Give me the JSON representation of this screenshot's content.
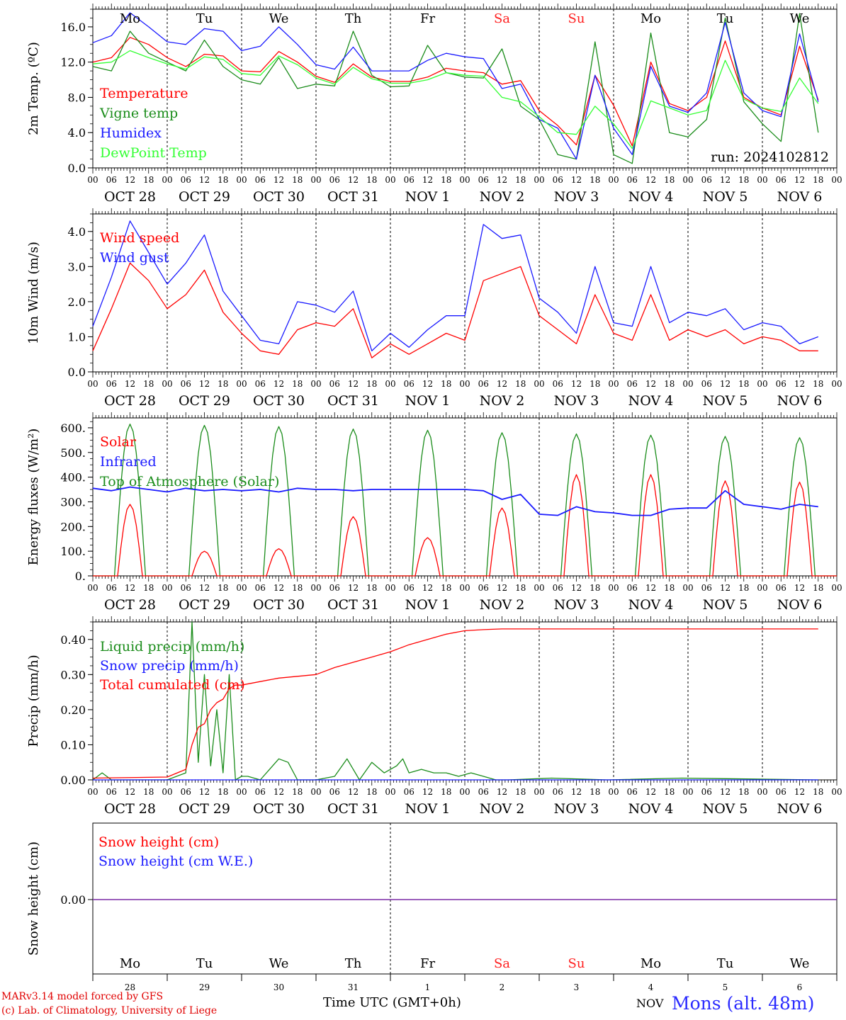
{
  "footer": {
    "credit_model": "MARv3.14 model forced by GFS",
    "credit_lab": "(c) Lab. of Climatology, University of Liege",
    "x_axis_title": "Time UTC (GMT+0h)",
    "month_label": "NOV",
    "station": "Mons (alt. 48m)"
  },
  "day_names": [
    "Mo",
    "Tu",
    "We",
    "Th",
    "Fr",
    "Sa",
    "Su",
    "Mo",
    "Tu",
    "We"
  ],
  "weekend_day_indices": [
    5,
    6
  ],
  "date_labels": [
    "OCT 28",
    "OCT 29",
    "OCT 30",
    "OCT 31",
    "NOV  1",
    "NOV  2",
    "NOV  3",
    "NOV  4",
    "NOV  5",
    "NOV  6"
  ],
  "day_numbers": [
    "28",
    "29",
    "30",
    "31",
    "1",
    "2",
    "3",
    "4",
    "5",
    "6"
  ],
  "hour_ticks": [
    "00",
    "06",
    "12",
    "18"
  ],
  "colors": {
    "red": "#ff0000",
    "green": "#1a8c1a",
    "blue": "#1a1aff",
    "lightgreen": "#33ff33",
    "purple": "#7a2aa6",
    "weekend": "#ff2020"
  },
  "chart_data": [
    {
      "type": "line",
      "ylabel": "2m Temp. (ºC)",
      "ylim": [
        0,
        18
      ],
      "yticks": [
        0,
        4,
        8,
        12,
        16
      ],
      "ytick_labels": [
        "0.0",
        "4.0",
        "8.0",
        "12.0",
        "16.0"
      ],
      "annotation": "run: 2024102812",
      "x_unit": "hours since Oct 28 00 UTC",
      "series": [
        {
          "name": "Temperature",
          "color": "red",
          "x": [
            0,
            6,
            12,
            18,
            24,
            30,
            36,
            42,
            48,
            54,
            60,
            66,
            72,
            78,
            84,
            90,
            96,
            102,
            108,
            114,
            120,
            126,
            132,
            138,
            144,
            150,
            156,
            162,
            168,
            174,
            180,
            186,
            192,
            198,
            204,
            210,
            216,
            222,
            228,
            234
          ],
          "values": [
            12,
            12.5,
            14.8,
            14,
            12.5,
            11.5,
            12.9,
            12.7,
            11,
            10.9,
            13.2,
            12,
            10.4,
            9.7,
            11.8,
            10.3,
            9.8,
            9.8,
            10.3,
            11.3,
            11,
            10.8,
            9.5,
            9.9,
            6.5,
            4.8,
            2.6,
            10.5,
            7.1,
            2.5,
            12,
            7.3,
            6.5,
            8,
            14.4,
            8,
            6.8,
            6,
            13.8,
            7.7
          ]
        },
        {
          "name": "Vigne temp",
          "color": "green",
          "x": [
            0,
            6,
            12,
            18,
            24,
            30,
            36,
            42,
            48,
            54,
            60,
            66,
            72,
            78,
            84,
            90,
            96,
            102,
            108,
            114,
            120,
            126,
            132,
            138,
            144,
            150,
            156,
            162,
            168,
            174,
            180,
            186,
            192,
            198,
            204,
            210,
            216,
            222,
            228,
            234
          ],
          "values": [
            11.5,
            11,
            15.5,
            13,
            12,
            11,
            14.5,
            11.5,
            10,
            9.5,
            12.5,
            9,
            9.5,
            9.3,
            15.5,
            10.5,
            9.2,
            9.3,
            13.9,
            10.8,
            10.3,
            10.2,
            13.5,
            7,
            5.5,
            1.5,
            1,
            14.3,
            1.5,
            0.5,
            15.3,
            4,
            3.5,
            5.5,
            17,
            7.5,
            5,
            3,
            17.5,
            4
          ]
        },
        {
          "name": "Humidex",
          "color": "blue",
          "x": [
            0,
            6,
            12,
            18,
            24,
            30,
            36,
            42,
            48,
            54,
            60,
            66,
            72,
            78,
            84,
            90,
            96,
            102,
            108,
            114,
            120,
            126,
            132,
            138,
            144,
            150,
            156,
            162,
            168,
            174,
            180,
            186,
            192,
            198,
            204,
            210,
            216,
            222,
            228,
            234
          ],
          "values": [
            14.2,
            15,
            17.6,
            16,
            14.3,
            14,
            15.8,
            15.5,
            13.3,
            13.8,
            16,
            14,
            11.7,
            11.2,
            13.7,
            11,
            11,
            11,
            12.2,
            13,
            12.6,
            12.4,
            9,
            9.5,
            5.5,
            4.5,
            1,
            10.5,
            4.5,
            1.5,
            11.5,
            7,
            6.3,
            8.5,
            16.5,
            8.5,
            6.5,
            5.8,
            15.2,
            7.5
          ]
        },
        {
          "name": "DewPoint Temp",
          "color": "lightgreen",
          "x": [
            0,
            6,
            12,
            18,
            24,
            30,
            36,
            42,
            48,
            54,
            60,
            66,
            72,
            78,
            84,
            90,
            96,
            102,
            108,
            114,
            120,
            126,
            132,
            138,
            144,
            150,
            156,
            162,
            168,
            174,
            180,
            186,
            192,
            198,
            204,
            210,
            216,
            222,
            228,
            234
          ],
          "values": [
            11.8,
            12,
            13.3,
            12.5,
            11.8,
            11.2,
            12.6,
            12.3,
            10.7,
            10.5,
            12.7,
            11.7,
            10.2,
            9.5,
            11.4,
            10.1,
            9.6,
            9.6,
            10,
            10.8,
            10.5,
            10.4,
            8,
            7.5,
            5.8,
            4,
            3.8,
            7,
            5,
            2.2,
            7.6,
            6.8,
            6,
            6.5,
            12.2,
            7.8,
            6.8,
            6.4,
            10.2,
            7.3
          ]
        }
      ]
    },
    {
      "type": "line",
      "ylabel": "10m Wind (m/s)",
      "ylim": [
        0,
        4.5
      ],
      "yticks": [
        0,
        1,
        2,
        3,
        4
      ],
      "ytick_labels": [
        "0.0",
        "1.0",
        "2.0",
        "3.0",
        "4.0"
      ],
      "x_unit": "hours since Oct 28 00 UTC",
      "series": [
        {
          "name": "Wind speed",
          "color": "red",
          "x": [
            0,
            6,
            12,
            18,
            24,
            30,
            36,
            42,
            48,
            54,
            60,
            66,
            72,
            78,
            84,
            90,
            96,
            102,
            108,
            114,
            120,
            126,
            132,
            138,
            144,
            150,
            156,
            162,
            168,
            174,
            180,
            186,
            192,
            198,
            204,
            210,
            216,
            222,
            228,
            234
          ],
          "values": [
            0.6,
            1.8,
            3.1,
            2.6,
            1.8,
            2.2,
            2.9,
            1.7,
            1.1,
            0.6,
            0.5,
            1.2,
            1.4,
            1.3,
            1.8,
            0.4,
            0.8,
            0.5,
            0.8,
            1.1,
            0.9,
            2.6,
            2.8,
            3.0,
            1.6,
            1.2,
            0.8,
            2.2,
            1.1,
            0.9,
            2.2,
            0.9,
            1.2,
            1.0,
            1.2,
            0.8,
            1.0,
            0.9,
            0.6,
            0.6
          ]
        },
        {
          "name": "Wind gust",
          "color": "blue",
          "x": [
            0,
            6,
            12,
            18,
            24,
            30,
            36,
            42,
            48,
            54,
            60,
            66,
            72,
            78,
            84,
            90,
            96,
            102,
            108,
            114,
            120,
            126,
            132,
            138,
            144,
            150,
            156,
            162,
            168,
            174,
            180,
            186,
            192,
            198,
            204,
            210,
            216,
            222,
            228,
            234
          ],
          "values": [
            1.3,
            2.7,
            4.3,
            3.4,
            2.5,
            3.1,
            3.9,
            2.3,
            1.6,
            0.9,
            0.8,
            2.0,
            1.9,
            1.7,
            2.3,
            0.6,
            1.1,
            0.7,
            1.2,
            1.6,
            1.6,
            4.2,
            3.8,
            3.9,
            2.1,
            1.7,
            1.1,
            3.0,
            1.4,
            1.3,
            3.0,
            1.4,
            1.7,
            1.6,
            1.8,
            1.2,
            1.4,
            1.3,
            0.8,
            1.0
          ]
        }
      ]
    },
    {
      "type": "line",
      "ylabel": "Energy fluxes (W/m²)",
      "ylim": [
        0,
        640
      ],
      "yticks": [
        0,
        100,
        200,
        300,
        400,
        500,
        600
      ],
      "ytick_labels": [
        "0.",
        "100.",
        "200.",
        "300.",
        "400.",
        "500.",
        "600."
      ],
      "x_unit": "hours since Oct 28 00 UTC",
      "series": [
        {
          "name": "Solar",
          "color": "red",
          "daily_peak_values": [
            290,
            100,
            110,
            240,
            155,
            275,
            410,
            410,
            385,
            380
          ]
        },
        {
          "name": "Infrared",
          "color": "blue",
          "x": [
            0,
            6,
            12,
            18,
            24,
            30,
            36,
            42,
            48,
            54,
            60,
            66,
            72,
            78,
            84,
            90,
            96,
            102,
            108,
            114,
            120,
            126,
            132,
            138,
            144,
            150,
            156,
            162,
            168,
            174,
            180,
            186,
            192,
            198,
            204,
            210,
            216,
            222,
            228,
            234
          ],
          "values": [
            355,
            345,
            360,
            350,
            340,
            355,
            345,
            350,
            345,
            350,
            340,
            355,
            350,
            350,
            345,
            350,
            350,
            350,
            350,
            350,
            350,
            345,
            310,
            330,
            250,
            245,
            280,
            260,
            255,
            245,
            245,
            270,
            275,
            275,
            345,
            290,
            280,
            270,
            290,
            280
          ]
        },
        {
          "name": "Top of Atmosphere (Solar)",
          "color": "green",
          "daily_peak_values": [
            615,
            610,
            605,
            595,
            590,
            580,
            575,
            570,
            565,
            560
          ]
        }
      ]
    },
    {
      "type": "line",
      "ylabel": "Precip (mm/h)",
      "ylim": [
        0,
        0.45
      ],
      "yticks": [
        0,
        0.1,
        0.2,
        0.3,
        0.4
      ],
      "ytick_labels": [
        "0.00",
        "0.10",
        "0.20",
        "0.30",
        "0.40"
      ],
      "x_unit": "hours since Oct 28 00 UTC",
      "series": [
        {
          "name": "Liquid precip (mm/h)",
          "color": "green",
          "x": [
            0,
            3,
            6,
            24,
            30,
            32,
            34,
            36,
            38,
            40,
            42,
            44,
            46,
            48,
            50,
            54,
            60,
            63,
            66,
            72,
            78,
            82,
            84,
            86,
            90,
            94,
            98,
            100,
            102,
            106,
            110,
            114,
            118,
            122,
            126,
            130,
            134,
            148,
            166,
            190,
            234
          ],
          "values": [
            0,
            0.02,
            0,
            0,
            0.02,
            0.45,
            0.05,
            0.3,
            0.04,
            0.2,
            0.02,
            0.3,
            0,
            0.01,
            0.01,
            0,
            0.06,
            0.05,
            0,
            0,
            0.01,
            0.06,
            0.03,
            0,
            0.05,
            0.02,
            0.04,
            0.06,
            0.02,
            0.03,
            0.02,
            0.02,
            0.01,
            0.02,
            0.01,
            0,
            0,
            0.005,
            0,
            0.005,
            0
          ]
        },
        {
          "name": "Snow precip (mm/h)",
          "color": "blue",
          "x": [
            0,
            234
          ],
          "values": [
            0,
            0
          ]
        },
        {
          "name": "Total cumulated (cm)",
          "color": "red",
          "x": [
            0,
            24,
            30,
            32,
            34,
            36,
            38,
            40,
            42,
            44,
            46,
            48,
            54,
            60,
            66,
            72,
            78,
            84,
            90,
            96,
            102,
            108,
            114,
            120,
            126,
            132,
            138,
            144,
            234
          ],
          "values": [
            0.005,
            0.008,
            0.03,
            0.1,
            0.15,
            0.16,
            0.2,
            0.22,
            0.23,
            0.26,
            0.27,
            0.27,
            0.28,
            0.29,
            0.295,
            0.3,
            0.32,
            0.335,
            0.35,
            0.365,
            0.385,
            0.4,
            0.415,
            0.425,
            0.428,
            0.43,
            0.43,
            0.43,
            0.43
          ]
        }
      ]
    },
    {
      "type": "line",
      "ylabel": "Snow height (cm)",
      "ytick_labels": [
        "0.00"
      ],
      "x_unit": "hours since Oct 28 00 UTC",
      "series": [
        {
          "name": "Snow height (cm)",
          "color": "red",
          "x": [
            0,
            234
          ],
          "values": [
            0,
            0
          ]
        },
        {
          "name": "Snow height (cm W.E.)",
          "color": "blue",
          "x": [
            0,
            234
          ],
          "values": [
            0,
            0
          ]
        }
      ]
    }
  ]
}
